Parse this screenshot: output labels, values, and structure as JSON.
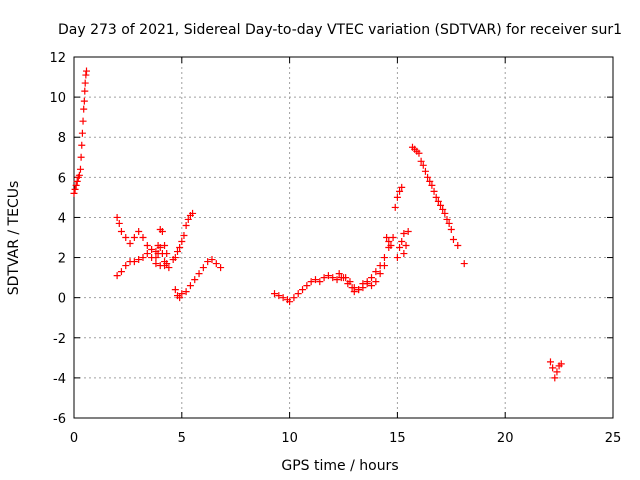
{
  "chart_data": {
    "type": "scatter",
    "title": "Day 273 of 2021, Sidereal Day-to-day VTEC variation (SDTVAR) for receiver sur1",
    "xlabel": "GPS time / hours",
    "ylabel": "SDTVAR / TECUs",
    "xlim": [
      0,
      25
    ],
    "ylim": [
      -6,
      12
    ],
    "xticks": [
      0,
      5,
      10,
      15,
      20,
      25
    ],
    "yticks": [
      -6,
      -4,
      -2,
      0,
      2,
      4,
      6,
      8,
      10,
      12
    ],
    "grid": true,
    "legend": "none",
    "marker": "+",
    "color": "#ff0000",
    "series": [
      {
        "x": [
          0.0,
          0.05,
          0.1,
          0.15,
          0.2,
          0.25,
          0.3,
          0.33,
          0.36,
          0.39,
          0.42,
          0.45,
          0.48,
          0.5,
          0.52,
          0.55,
          0.58,
          2.0,
          2.2,
          2.4,
          2.6,
          2.8,
          3.0,
          3.2,
          3.4,
          3.6,
          3.8,
          4.0,
          4.2,
          2.0,
          2.1,
          2.2,
          2.4,
          2.6,
          2.8,
          3.0,
          3.2,
          3.4,
          3.6,
          3.8,
          3.9,
          4.0,
          4.1,
          4.2,
          4.3,
          3.8,
          3.9,
          4.0,
          4.1,
          4.2,
          4.3,
          4.4,
          4.6,
          4.7,
          4.8,
          4.9,
          5.0,
          5.1,
          5.2,
          5.3,
          5.4,
          5.5,
          4.7,
          4.8,
          4.9,
          5.0,
          5.2,
          5.4,
          5.6,
          5.8,
          6.0,
          6.2,
          6.4,
          6.6,
          6.8,
          9.3,
          9.5,
          9.7,
          9.9,
          10.0,
          10.2,
          10.4,
          10.6,
          10.8,
          11.0,
          11.2,
          11.4,
          11.6,
          11.8,
          12.0,
          12.2,
          12.4,
          12.3,
          12.5,
          12.7,
          12.9,
          13.0,
          13.2,
          13.4,
          13.6,
          13.8,
          14.0,
          14.2,
          14.4,
          14.6,
          12.6,
          12.8,
          13.0,
          13.2,
          13.4,
          13.6,
          13.8,
          14.0,
          14.2,
          14.4,
          14.5,
          14.6,
          14.7,
          14.8,
          15.0,
          15.1,
          15.2,
          15.3,
          14.9,
          15.0,
          15.1,
          15.2,
          15.3,
          15.4,
          15.5,
          15.7,
          15.8,
          15.9,
          16.0,
          16.1,
          16.2,
          16.3,
          16.4,
          16.5,
          16.6,
          16.7,
          16.8,
          16.9,
          17.0,
          17.1,
          17.2,
          17.3,
          17.4,
          17.5,
          17.6,
          17.8,
          18.1,
          22.1,
          22.2,
          22.3,
          22.4,
          22.5,
          22.6
        ],
        "y": [
          5.2,
          5.4,
          5.6,
          5.8,
          6.0,
          6.1,
          6.4,
          7.0,
          7.6,
          8.2,
          8.8,
          9.4,
          9.8,
          10.3,
          10.7,
          11.1,
          11.3,
          1.1,
          1.3,
          1.6,
          1.8,
          1.8,
          1.9,
          2.0,
          2.2,
          2.0,
          1.7,
          1.6,
          1.6,
          4.0,
          3.7,
          3.3,
          3.0,
          2.7,
          3.0,
          3.3,
          3.0,
          2.6,
          2.4,
          2.3,
          2.6,
          3.4,
          3.3,
          2.6,
          2.2,
          2.0,
          2.2,
          2.5,
          2.2,
          1.8,
          1.7,
          1.5,
          1.9,
          2.0,
          2.3,
          2.5,
          2.8,
          3.1,
          3.6,
          3.9,
          4.1,
          4.2,
          0.4,
          0.1,
          0.0,
          0.2,
          0.3,
          0.6,
          0.9,
          1.2,
          1.5,
          1.8,
          1.9,
          1.7,
          1.5,
          0.2,
          0.1,
          0.0,
          -0.1,
          -0.2,
          0.0,
          0.2,
          0.4,
          0.6,
          0.8,
          0.9,
          0.8,
          1.0,
          1.1,
          1.0,
          0.9,
          1.0,
          1.2,
          1.0,
          0.7,
          0.5,
          0.3,
          0.4,
          0.7,
          0.8,
          1.0,
          1.3,
          1.6,
          2.0,
          2.5,
          1.0,
          0.8,
          0.5,
          0.4,
          0.5,
          0.7,
          0.6,
          0.8,
          1.2,
          1.6,
          3.0,
          2.8,
          2.6,
          3.0,
          2.0,
          2.5,
          2.8,
          3.2,
          4.5,
          5.0,
          5.3,
          5.5,
          2.2,
          2.6,
          3.3,
          7.5,
          7.4,
          7.3,
          7.2,
          6.8,
          6.6,
          6.3,
          6.0,
          5.8,
          5.6,
          5.3,
          5.0,
          4.8,
          4.6,
          4.4,
          4.2,
          3.9,
          3.7,
          3.4,
          2.9,
          2.6,
          1.7,
          -3.2,
          -3.5,
          -4.0,
          -3.7,
          -3.4,
          -3.3
        ]
      }
    ]
  }
}
